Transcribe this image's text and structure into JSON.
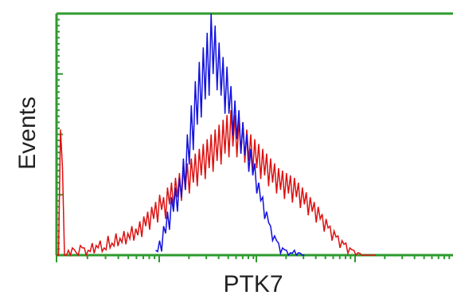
{
  "chart_data": {
    "type": "line",
    "title": "",
    "xlabel": "PTK7",
    "ylabel": "Events",
    "xlim": [
      0,
      100
    ],
    "ylim": [
      0,
      100
    ],
    "x_scale": "log",
    "grid": false,
    "series": [
      {
        "color": "#dd1111",
        "x": [
          0,
          1,
          2,
          3,
          4,
          5,
          6,
          7,
          8,
          9,
          10,
          11,
          12,
          13,
          14,
          15,
          16,
          17,
          18,
          19,
          20,
          21,
          22,
          23,
          24,
          25,
          26,
          27,
          28,
          29,
          30,
          31,
          32,
          33,
          34,
          35,
          36,
          37,
          38,
          39,
          40,
          41,
          42,
          43,
          44,
          45,
          46,
          47,
          48,
          49,
          50,
          51,
          52,
          53,
          54,
          55,
          56,
          57,
          58,
          59,
          60,
          61,
          62,
          63,
          64,
          65,
          66,
          67,
          68,
          69,
          70,
          71,
          72,
          73,
          74,
          75,
          76,
          77,
          78,
          79,
          80
        ],
        "values": [
          0,
          52,
          0,
          2,
          3,
          1,
          4,
          3,
          2,
          5,
          4,
          6,
          3,
          8,
          5,
          9,
          7,
          10,
          9,
          12,
          11,
          14,
          16,
          18,
          20,
          22,
          25,
          24,
          28,
          30,
          32,
          34,
          36,
          38,
          40,
          42,
          44,
          46,
          48,
          50,
          52,
          54,
          56,
          58,
          60,
          58,
          56,
          55,
          52,
          50,
          48,
          46,
          44,
          42,
          40,
          38,
          36,
          35,
          34,
          33,
          32,
          30,
          28,
          26,
          24,
          22,
          20,
          17,
          15,
          12,
          10,
          8,
          6,
          5,
          3,
          2,
          1,
          0,
          0,
          0,
          0
        ]
      },
      {
        "color": "#1111dd",
        "x": [
          25,
          26,
          27,
          28,
          29,
          30,
          31,
          32,
          33,
          34,
          35,
          36,
          37,
          38,
          39,
          40,
          41,
          42,
          43,
          44,
          45,
          46,
          47,
          48,
          49,
          50,
          51,
          52,
          53,
          54,
          55,
          56,
          57,
          58,
          59,
          60,
          61,
          62
        ],
        "values": [
          2,
          6,
          12,
          18,
          24,
          28,
          32,
          40,
          50,
          62,
          72,
          80,
          86,
          92,
          100,
          95,
          88,
          82,
          78,
          70,
          64,
          60,
          55,
          50,
          44,
          38,
          30,
          24,
          18,
          12,
          8,
          5,
          3,
          2,
          1,
          2,
          1,
          0
        ]
      }
    ]
  }
}
